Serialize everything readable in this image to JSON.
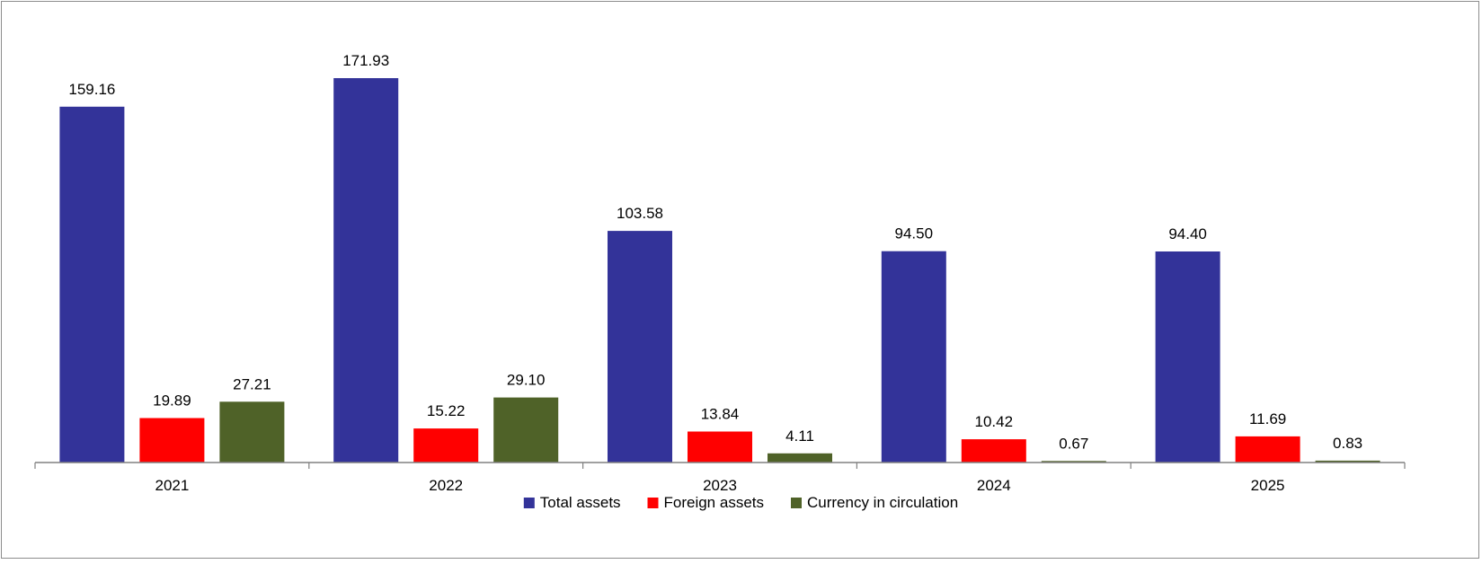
{
  "chart_data": {
    "type": "bar",
    "categories": [
      "2021",
      "2022",
      "2023",
      "2024",
      "2025"
    ],
    "series": [
      {
        "name": "Total assets",
        "color": "#333399",
        "values": [
          159.16,
          171.93,
          103.58,
          94.5,
          94.4
        ],
        "labels": [
          "159.16",
          "171.93",
          "103.58",
          "94.50",
          "94.40"
        ]
      },
      {
        "name": "Foreign assets",
        "color": "#ff0000",
        "values": [
          19.89,
          15.22,
          13.84,
          10.42,
          11.69
        ],
        "labels": [
          "19.89",
          "15.22",
          "13.84",
          "10.42",
          "11.69"
        ]
      },
      {
        "name": "Currency in circulation",
        "color": "#4f6228",
        "values": [
          27.21,
          29.1,
          4.11,
          0.67,
          0.83
        ],
        "labels": [
          "27.21",
          "29.10",
          "4.11",
          "0.67",
          "0.83"
        ]
      }
    ],
    "title": "",
    "xlabel": "",
    "ylabel": "",
    "ylim": [
      0,
      190
    ],
    "grid": false,
    "legend": "bottom-center",
    "axis_color": "#808080"
  }
}
